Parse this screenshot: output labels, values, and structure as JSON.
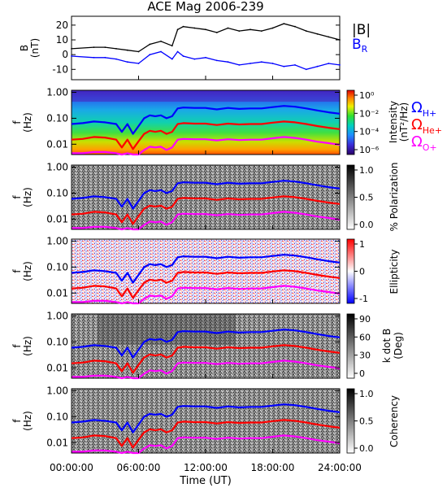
{
  "chart_data": {
    "type": "heatmap",
    "title": "ACE Mag 2006-239",
    "xlabel": "Time (UT)",
    "x_ticks": [
      "00:00:00",
      "06:00:00",
      "12:00:00",
      "18:00:00",
      "24:00:00"
    ],
    "xlim_hours": [
      0,
      24
    ],
    "freq_ticks": [
      "1.00",
      "0.10",
      "0.01"
    ],
    "ylim_freq_hz": [
      0.004,
      1.2
    ],
    "ylabel_freq": "f (Hz)",
    "panels": [
      {
        "id": "field",
        "type": "line",
        "ylabel": "B (nT)",
        "ylim": [
          -17,
          26
        ],
        "yticks": [
          20,
          10,
          0,
          -10
        ],
        "legend": [
          "|B|",
          "B_R"
        ],
        "series": [
          {
            "name": "|B|",
            "color": "#000000",
            "x": [
              0,
              2,
              3,
              4,
              5,
              6,
              7,
              8,
              9,
              9.5,
              10,
              11,
              12,
              13,
              14,
              15,
              16,
              17,
              18,
              19,
              20,
              21,
              22,
              23,
              24
            ],
            "y": [
              4,
              5,
              5,
              4,
              3,
              2,
              7,
              9,
              6,
              17,
              19,
              18,
              17,
              15,
              18,
              16,
              17,
              16,
              18,
              21,
              19,
              16,
              14,
              12,
              10
            ]
          },
          {
            "name": "B_R",
            "color": "#0000ff",
            "x": [
              0,
              2,
              3,
              4,
              5,
              6,
              7,
              8,
              9,
              9.5,
              10,
              11,
              12,
              13,
              14,
              15,
              16,
              17,
              18,
              19,
              20,
              21,
              22,
              23,
              24
            ],
            "y": [
              -1,
              -2,
              -2,
              -3,
              -5,
              -6,
              0,
              2,
              -3,
              2,
              -1,
              -3,
              -2,
              -4,
              -5,
              -7,
              -6,
              -5,
              -6,
              -8,
              -7,
              -10,
              -8,
              -6,
              -7
            ]
          }
        ]
      },
      {
        "id": "intensity",
        "colorbar_label": "Intensity (nT²/Hz)",
        "colorbar_ticks": [
          "10⁰",
          "10⁻²",
          "10⁻⁴",
          "10⁻⁶"
        ],
        "colorscale": "rainbow"
      },
      {
        "id": "polarization",
        "colorbar_label": "% Polarization",
        "colorbar_ticks": [
          "1.0",
          "0.5",
          "0.0"
        ],
        "colorscale": "gray"
      },
      {
        "id": "ellipticity",
        "colorbar_label": "Ellipticity",
        "colorbar_ticks": [
          "1",
          "0",
          "-1"
        ],
        "colorscale": "bwr"
      },
      {
        "id": "kdotb",
        "colorbar_label": "k dot B (Deg)",
        "colorbar_ticks": [
          "90",
          "60",
          "30",
          "0"
        ],
        "colorscale": "gray"
      },
      {
        "id": "coherency",
        "colorbar_label": "Coherency",
        "colorbar_ticks": [
          "1.0",
          "0.5",
          "0.0"
        ],
        "colorscale": "gray"
      }
    ],
    "gyrofrequency_lines": [
      {
        "name": "Ω_H+",
        "color": "#0000ff",
        "x": [
          0,
          1,
          2,
          3,
          4,
          4.5,
          5,
          5.5,
          6,
          6.5,
          7,
          7.5,
          8,
          8.5,
          9,
          9.5,
          10,
          11,
          12,
          13,
          14,
          15,
          16,
          17,
          18,
          19,
          20,
          21,
          22,
          23,
          24
        ],
        "f": [
          0.06,
          0.065,
          0.075,
          0.07,
          0.06,
          0.03,
          0.06,
          0.025,
          0.05,
          0.1,
          0.13,
          0.12,
          0.13,
          0.1,
          0.12,
          0.24,
          0.26,
          0.25,
          0.25,
          0.22,
          0.25,
          0.23,
          0.24,
          0.24,
          0.27,
          0.3,
          0.28,
          0.24,
          0.2,
          0.17,
          0.15
        ]
      },
      {
        "name": "Ω_He+",
        "color": "#ff0000",
        "x": [
          0,
          1,
          2,
          3,
          4,
          4.5,
          5,
          5.5,
          6,
          6.5,
          7,
          7.5,
          8,
          8.5,
          9,
          9.5,
          10,
          11,
          12,
          13,
          14,
          15,
          16,
          17,
          18,
          19,
          20,
          21,
          22,
          23,
          24
        ],
        "f": [
          0.015,
          0.016,
          0.019,
          0.018,
          0.015,
          0.0075,
          0.015,
          0.0065,
          0.013,
          0.025,
          0.033,
          0.03,
          0.033,
          0.025,
          0.03,
          0.06,
          0.065,
          0.062,
          0.062,
          0.055,
          0.062,
          0.058,
          0.06,
          0.06,
          0.068,
          0.075,
          0.07,
          0.06,
          0.05,
          0.043,
          0.038
        ]
      },
      {
        "name": "Ω_O+",
        "color": "#ff00ff",
        "x": [
          0,
          1,
          2,
          3,
          4,
          4.5,
          5,
          5.5,
          6,
          6.5,
          7,
          7.5,
          8,
          8.5,
          9,
          9.5,
          10,
          11,
          12,
          13,
          14,
          15,
          16,
          17,
          18,
          19,
          20,
          21,
          22,
          23,
          24
        ],
        "f": [
          0.0045,
          0.0045,
          0.005,
          0.005,
          0.0045,
          0.004,
          0.0045,
          0.004,
          0.004,
          0.006,
          0.008,
          0.0075,
          0.008,
          0.006,
          0.0075,
          0.015,
          0.016,
          0.0155,
          0.0155,
          0.014,
          0.0155,
          0.0145,
          0.015,
          0.015,
          0.017,
          0.019,
          0.0175,
          0.015,
          0.0125,
          0.011,
          0.0095
        ]
      }
    ],
    "legend_labels": [
      {
        "text": "Ω",
        "sub": "H+",
        "color": "#0000ff"
      },
      {
        "text": "Ω",
        "sub": "He+",
        "color": "#ff0000"
      },
      {
        "text": "Ω",
        "sub": "O+",
        "color": "#ff00ff"
      }
    ]
  }
}
